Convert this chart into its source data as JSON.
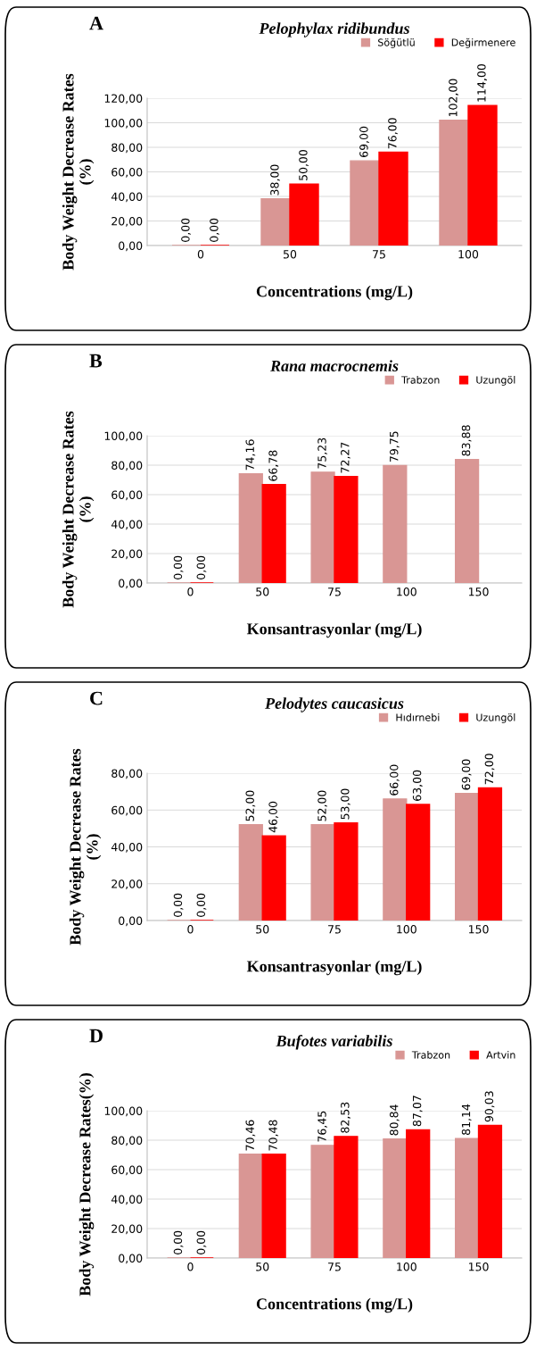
{
  "chart_data": [
    {
      "type": "bar",
      "title": "Pelophylax ridibundus",
      "annotations": [
        "A"
      ],
      "xlabel": "Concentrations (mg/L)",
      "ylabel": "Body Weight Decrease Rates\n(%)",
      "categories": [
        "0",
        "50",
        "75",
        "100"
      ],
      "series": [
        {
          "name": "Söğütlü",
          "color": "#d99694",
          "values": [
            0,
            38,
            69,
            102
          ],
          "value_labels": [
            "0,00",
            "38,00",
            "69,00",
            "102,00"
          ]
        },
        {
          "name": "Değirmenere",
          "color": "#ff0000",
          "values": [
            0,
            50,
            76,
            114
          ],
          "value_labels": [
            "0,00",
            "50,00",
            "76,00",
            "114,00"
          ]
        }
      ],
      "ylim": [
        0,
        120
      ],
      "yticks": [
        {
          "value": 0,
          "label": "0,00"
        },
        {
          "value": 20,
          "label": "20,00"
        },
        {
          "value": 40,
          "label": "40,00"
        },
        {
          "value": 60,
          "label": "60,00"
        },
        {
          "value": 80,
          "label": "80,00"
        },
        {
          "value": 100,
          "label": "100,00"
        },
        {
          "value": 120,
          "label": "120,00"
        }
      ],
      "grid": "y",
      "legend": "top right"
    },
    {
      "type": "bar",
      "title": "Rana macrocnemis",
      "annotations": [
        "B"
      ],
      "xlabel": "Konsantrasyonlar (mg/L)",
      "ylabel": "Body Weight Decrease Rates\n(%)",
      "categories": [
        "0",
        "50",
        "75",
        "100",
        "150"
      ],
      "series": [
        {
          "name": "Trabzon",
          "color": "#d99694",
          "values": [
            0,
            74.16,
            75.23,
            79.75,
            83.88
          ],
          "value_labels": [
            "0,00",
            "74,16",
            "75,23",
            "79,75",
            "83,88"
          ]
        },
        {
          "name": "Uzungöl",
          "color": "#ff0000",
          "values": [
            0,
            66.78,
            72.27,
            null,
            null
          ],
          "value_labels": [
            "0,00",
            "66,78",
            "72,27",
            null,
            null
          ]
        }
      ],
      "ylim": [
        0,
        100
      ],
      "yticks": [
        {
          "value": 0,
          "label": "0,00"
        },
        {
          "value": 20,
          "label": "20,00"
        },
        {
          "value": 40,
          "label": "40,00"
        },
        {
          "value": 60,
          "label": "60,00"
        },
        {
          "value": 80,
          "label": "80,00"
        },
        {
          "value": 100,
          "label": "100,00"
        }
      ],
      "grid": "y",
      "legend": "top right"
    },
    {
      "type": "bar",
      "title": "Pelodytes caucasicus",
      "annotations": [
        "C"
      ],
      "xlabel": "Konsantrasyonlar (mg/L)",
      "ylabel": "Body Weight Decrease Rates\n(%)",
      "categories": [
        "0",
        "50",
        "75",
        "100",
        "150"
      ],
      "series": [
        {
          "name": "Hıdırnebi",
          "color": "#d99694",
          "values": [
            0,
            52,
            52,
            66,
            69
          ],
          "value_labels": [
            "0,00",
            "52,00",
            "52,00",
            "66,00",
            "69,00"
          ]
        },
        {
          "name": "Uzungöl",
          "color": "#ff0000",
          "values": [
            0,
            46,
            53,
            63,
            72
          ],
          "value_labels": [
            "0,00",
            "46,00",
            "53,00",
            "63,00",
            "72,00"
          ]
        }
      ],
      "ylim": [
        0,
        80
      ],
      "yticks": [
        {
          "value": 0,
          "label": "0,00"
        },
        {
          "value": 20,
          "label": "20,00"
        },
        {
          "value": 40,
          "label": "40,00"
        },
        {
          "value": 60,
          "label": "60,00"
        },
        {
          "value": 80,
          "label": "80,00"
        }
      ],
      "grid": "y",
      "legend": "top right"
    },
    {
      "type": "bar",
      "title": "Bufotes variabilis",
      "annotations": [
        "D"
      ],
      "xlabel": "Concentrations (mg/L)",
      "ylabel": "Body Weight Decrease Rates(%)",
      "categories": [
        "0",
        "50",
        "75",
        "100",
        "150"
      ],
      "series": [
        {
          "name": "Trabzon",
          "color": "#d99694",
          "values": [
            0,
            70.46,
            76.45,
            80.84,
            81.14
          ],
          "value_labels": [
            "0,00",
            "70,46",
            "76,45",
            "80,84",
            "81,14"
          ]
        },
        {
          "name": "Artvin",
          "color": "#ff0000",
          "values": [
            0,
            70.48,
            82.53,
            87.07,
            90.03
          ],
          "value_labels": [
            "0,00",
            "70,48",
            "82,53",
            "87,07",
            "90,03"
          ]
        }
      ],
      "ylim": [
        0,
        100
      ],
      "yticks": [
        {
          "value": 0,
          "label": "0,00"
        },
        {
          "value": 20,
          "label": "20,00"
        },
        {
          "value": 40,
          "label": "40,00"
        },
        {
          "value": 60,
          "label": "60,00"
        },
        {
          "value": 80,
          "label": "80,00"
        },
        {
          "value": 100,
          "label": "100,00"
        }
      ],
      "grid": "y",
      "legend": "top right"
    }
  ]
}
